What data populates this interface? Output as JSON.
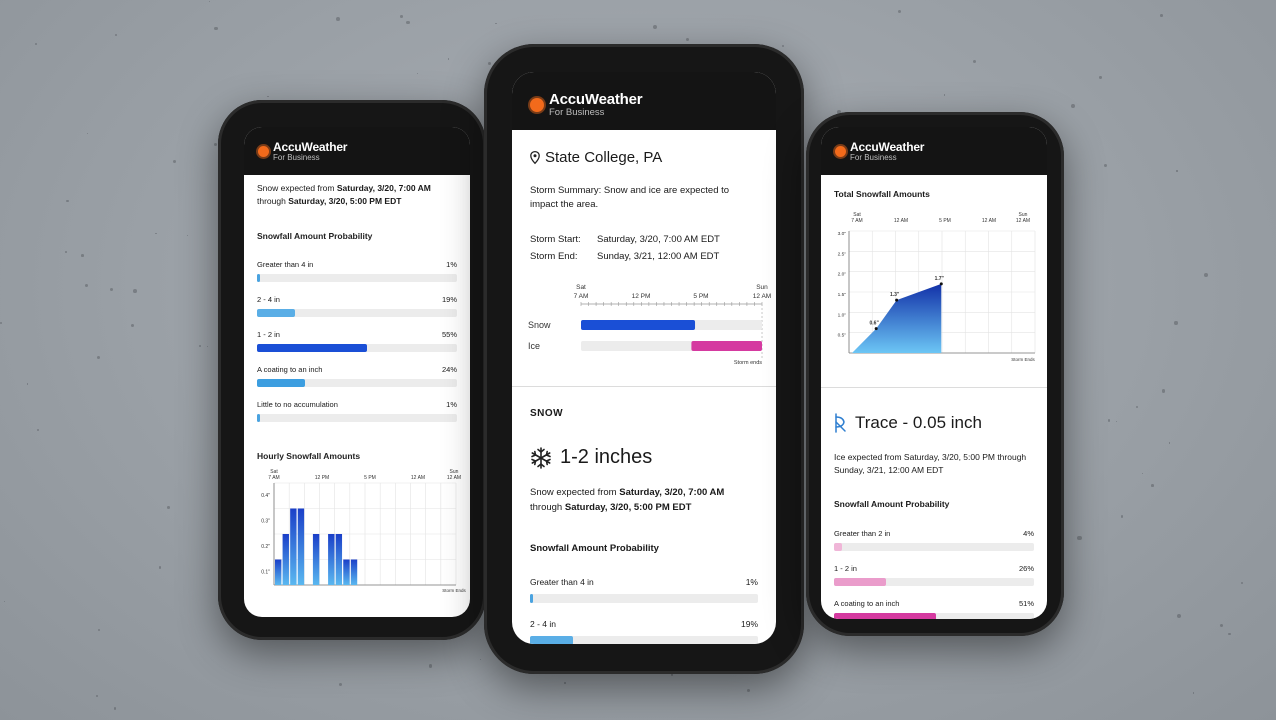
{
  "brand": {
    "name": "AccuWeather",
    "tagline": "For Business",
    "accent": "#f26a1b"
  },
  "left": {
    "expected_prefix": "Snow expected from ",
    "expected_start": "Saturday, 3/20, 7:00 AM",
    "expected_through": "through ",
    "expected_end": "Saturday, 3/20, 5:00 PM EDT",
    "prob_title": "Snowfall Amount Probability",
    "prob_items": [
      {
        "label": "Greater than 4 in",
        "pct": "1%",
        "value": 1,
        "color": "#4aa3e0"
      },
      {
        "label": "2 - 4 in",
        "pct": "19%",
        "value": 19,
        "color": "#5aaee6"
      },
      {
        "label": "1 - 2 in",
        "pct": "55%",
        "value": 55,
        "color": "#1a4fd6"
      },
      {
        "label": "A coating to an inch",
        "pct": "24%",
        "value": 24,
        "color": "#3c9ee0"
      },
      {
        "label": "Little to no accumulation",
        "pct": "1%",
        "value": 1,
        "color": "#4aa3e0"
      }
    ],
    "hourly_title": "Hourly Snowfall Amounts",
    "hourly_chart": {
      "type": "bar",
      "x_ticks": [
        "Sat 7 AM",
        "12 PM",
        "5 PM",
        "12 AM",
        "Sun 12 AM"
      ],
      "y_ticks": [
        "0.4\"",
        "0.3\"",
        "0.2\"",
        "0.1\""
      ],
      "values": [
        0.1,
        0.2,
        0.3,
        0.3,
        0.2,
        0.2,
        0.2,
        0.1,
        0.1
      ],
      "ylim": [
        0,
        0.4
      ],
      "note": "Storm Ends"
    }
  },
  "center": {
    "location": "State College, PA",
    "summary_line1": "Storm Summary: Snow and ice are expected to",
    "summary_line2": "impact the area.",
    "storm_start_label": "Storm Start:",
    "storm_start_value": "Saturday, 3/20, 7:00 AM EDT",
    "storm_end_label": "Storm End:",
    "storm_end_value": "Sunday, 3/21, 12:00 AM EDT",
    "timeline": {
      "ticks": [
        "Sat 7 AM",
        "12 PM",
        "5 PM",
        "Sun 12 AM"
      ],
      "rows": [
        {
          "label": "Snow",
          "start": 0,
          "end": 0.63,
          "color": "#1a4fd6"
        },
        {
          "label": "Ice",
          "start": 0.61,
          "end": 1.0,
          "color": "#d53aa0"
        }
      ],
      "note": "Storm ends"
    },
    "section_label": "SNOW",
    "amount": "1-2 inches",
    "expected_prefix": "Snow expected from ",
    "expected_start": "Saturday, 3/20, 7:00 AM",
    "expected_through": "through ",
    "expected_end": "Saturday, 3/20, 5:00 PM EDT",
    "prob_title": "Snowfall Amount Probability",
    "prob_items": [
      {
        "label": "Greater than 4 in",
        "pct": "1%",
        "value": 1,
        "color": "#4aa3e0"
      },
      {
        "label": "2 - 4 in",
        "pct": "19%",
        "value": 19,
        "color": "#5aaee6"
      }
    ]
  },
  "right": {
    "total_title": "Total Snowfall Amounts",
    "total_chart": {
      "type": "area",
      "x_ticks": [
        "Sat 7 AM",
        "12 AM",
        "5 PM",
        "12 AM",
        "Sun 12 AM"
      ],
      "y_ticks": [
        "3.0\"",
        "2.5\"",
        "2.0\"",
        "1.5\"",
        "1.0\"",
        "0.5\""
      ],
      "points": [
        {
          "x": 0,
          "y": 0
        },
        {
          "x": 0.13,
          "y": 0.6
        },
        {
          "x": 0.24,
          "y": 1.3
        },
        {
          "x": 0.48,
          "y": 1.7
        }
      ],
      "labels": [
        "0.6\"",
        "1.3\"",
        "1.7\""
      ],
      "ylim": [
        0,
        3.0
      ],
      "note": "Storm Ends"
    },
    "ice_amount": "Trace - 0.05 inch",
    "ice_line1": "Ice expected from Saturday, 3/20, 5:00 PM through",
    "ice_line2": "Sunday, 3/21, 12:00 AM EDT",
    "prob_title": "Snowfall Amount Probability",
    "prob_items": [
      {
        "label": "Greater than 2 in",
        "pct": "4%",
        "value": 4,
        "color": "#f0b6d8"
      },
      {
        "label": "1 - 2 in",
        "pct": "26%",
        "value": 26,
        "color": "#ea9ccb"
      },
      {
        "label": "A coating to an inch",
        "pct": "51%",
        "value": 51,
        "color": "#d53aa0"
      }
    ]
  }
}
